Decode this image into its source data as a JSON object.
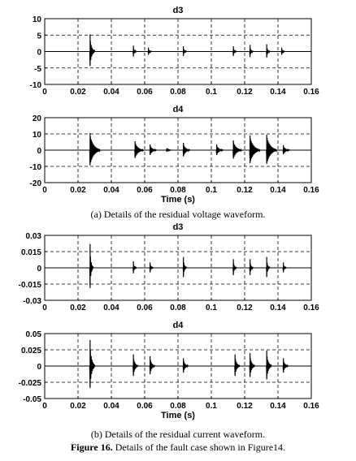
{
  "chart_data": [
    {
      "type": "line",
      "title": "d3",
      "xlabel": "",
      "xlim": [
        0,
        0.16
      ],
      "ylim": [
        -10,
        10
      ],
      "xticks": [
        "0",
        "0.02",
        "0.04",
        "0.06",
        "0.08",
        "0.1",
        "0.12",
        "0.14",
        "0.16"
      ],
      "yticks": [
        "10",
        "5",
        "0",
        "-5",
        "-10"
      ],
      "grid": "dashed",
      "spikes": [
        {
          "x": 0.027,
          "amp": 5.2,
          "ring": 0.003
        },
        {
          "x": 0.053,
          "amp": 1.8,
          "ring": 0.002
        },
        {
          "x": 0.062,
          "amp": 1.2,
          "ring": 0.002
        },
        {
          "x": 0.083,
          "amp": 1.6,
          "ring": 0.002
        },
        {
          "x": 0.113,
          "amp": 1.6,
          "ring": 0.002
        },
        {
          "x": 0.123,
          "amp": 2.0,
          "ring": 0.002
        },
        {
          "x": 0.133,
          "amp": 2.2,
          "ring": 0.002
        },
        {
          "x": 0.142,
          "amp": 1.2,
          "ring": 0.002
        }
      ]
    },
    {
      "type": "line",
      "title": "d4",
      "xlabel": "Time (s)",
      "xlim": [
        0,
        0.16
      ],
      "ylim": [
        -20,
        20
      ],
      "xticks": [
        "0",
        "0.02",
        "0.04",
        "0.06",
        "0.08",
        "0.1",
        "0.12",
        "0.14",
        "0.16"
      ],
      "yticks": [
        "20",
        "10",
        "0",
        "-10",
        "-20"
      ],
      "grid": "dashed",
      "spikes": [
        {
          "x": 0.027,
          "amp": 10.5,
          "ring": 0.006
        },
        {
          "x": 0.054,
          "amp": 5.5,
          "ring": 0.005
        },
        {
          "x": 0.063,
          "amp": 3.5,
          "ring": 0.004
        },
        {
          "x": 0.073,
          "amp": 1.2,
          "ring": 0.003
        },
        {
          "x": 0.083,
          "amp": 4.5,
          "ring": 0.004
        },
        {
          "x": 0.103,
          "amp": 3.5,
          "ring": 0.004
        },
        {
          "x": 0.113,
          "amp": 6.0,
          "ring": 0.005
        },
        {
          "x": 0.123,
          "amp": 9.0,
          "ring": 0.006
        },
        {
          "x": 0.133,
          "amp": 9.5,
          "ring": 0.006
        },
        {
          "x": 0.143,
          "amp": 3.0,
          "ring": 0.004
        }
      ]
    },
    {
      "type": "line",
      "title": "d3",
      "xlabel": "",
      "xlim": [
        0,
        0.16
      ],
      "ylim": [
        -0.03,
        0.03
      ],
      "xticks": [
        "0",
        "0.02",
        "0.04",
        "0.06",
        "0.08",
        "0.1",
        "0.12",
        "0.14",
        "0.16"
      ],
      "yticks": [
        "0.03",
        "0.015",
        "0",
        "-0.015",
        "-0.03"
      ],
      "grid": "dashed",
      "spikes": [
        {
          "x": 0.027,
          "amp": 0.022,
          "ring": 0.002
        },
        {
          "x": 0.053,
          "amp": 0.006,
          "ring": 0.002
        },
        {
          "x": 0.063,
          "amp": 0.005,
          "ring": 0.002
        },
        {
          "x": 0.083,
          "amp": 0.01,
          "ring": 0.002
        },
        {
          "x": 0.113,
          "amp": 0.008,
          "ring": 0.002
        },
        {
          "x": 0.123,
          "amp": 0.008,
          "ring": 0.002
        },
        {
          "x": 0.133,
          "amp": 0.01,
          "ring": 0.002
        },
        {
          "x": 0.143,
          "amp": 0.005,
          "ring": 0.002
        }
      ]
    },
    {
      "type": "line",
      "title": "d4",
      "xlabel": "Time (s)",
      "xlim": [
        0,
        0.16
      ],
      "ylim": [
        -0.05,
        0.05
      ],
      "xticks": [
        "0",
        "0.02",
        "0.04",
        "0.06",
        "0.08",
        "0.1",
        "0.12",
        "0.14",
        "0.16"
      ],
      "yticks": [
        "0.05",
        "0.025",
        "0",
        "-0.025",
        "-0.05"
      ],
      "grid": "dashed",
      "spikes": [
        {
          "x": 0.027,
          "amp": 0.04,
          "ring": 0.003
        },
        {
          "x": 0.053,
          "amp": 0.018,
          "ring": 0.003
        },
        {
          "x": 0.063,
          "amp": 0.015,
          "ring": 0.003
        },
        {
          "x": 0.083,
          "amp": 0.012,
          "ring": 0.003
        },
        {
          "x": 0.114,
          "amp": 0.018,
          "ring": 0.003
        },
        {
          "x": 0.123,
          "amp": 0.02,
          "ring": 0.003
        },
        {
          "x": 0.133,
          "amp": 0.024,
          "ring": 0.003
        },
        {
          "x": 0.143,
          "amp": 0.012,
          "ring": 0.003
        }
      ]
    }
  ],
  "captions": {
    "a": "(a) Details of the residual voltage waveform.",
    "b": "(b) Details of the residual current waveform.",
    "figure_label": "Figure 16.",
    "figure_text": " Details of the fault case shown in Figure14."
  }
}
